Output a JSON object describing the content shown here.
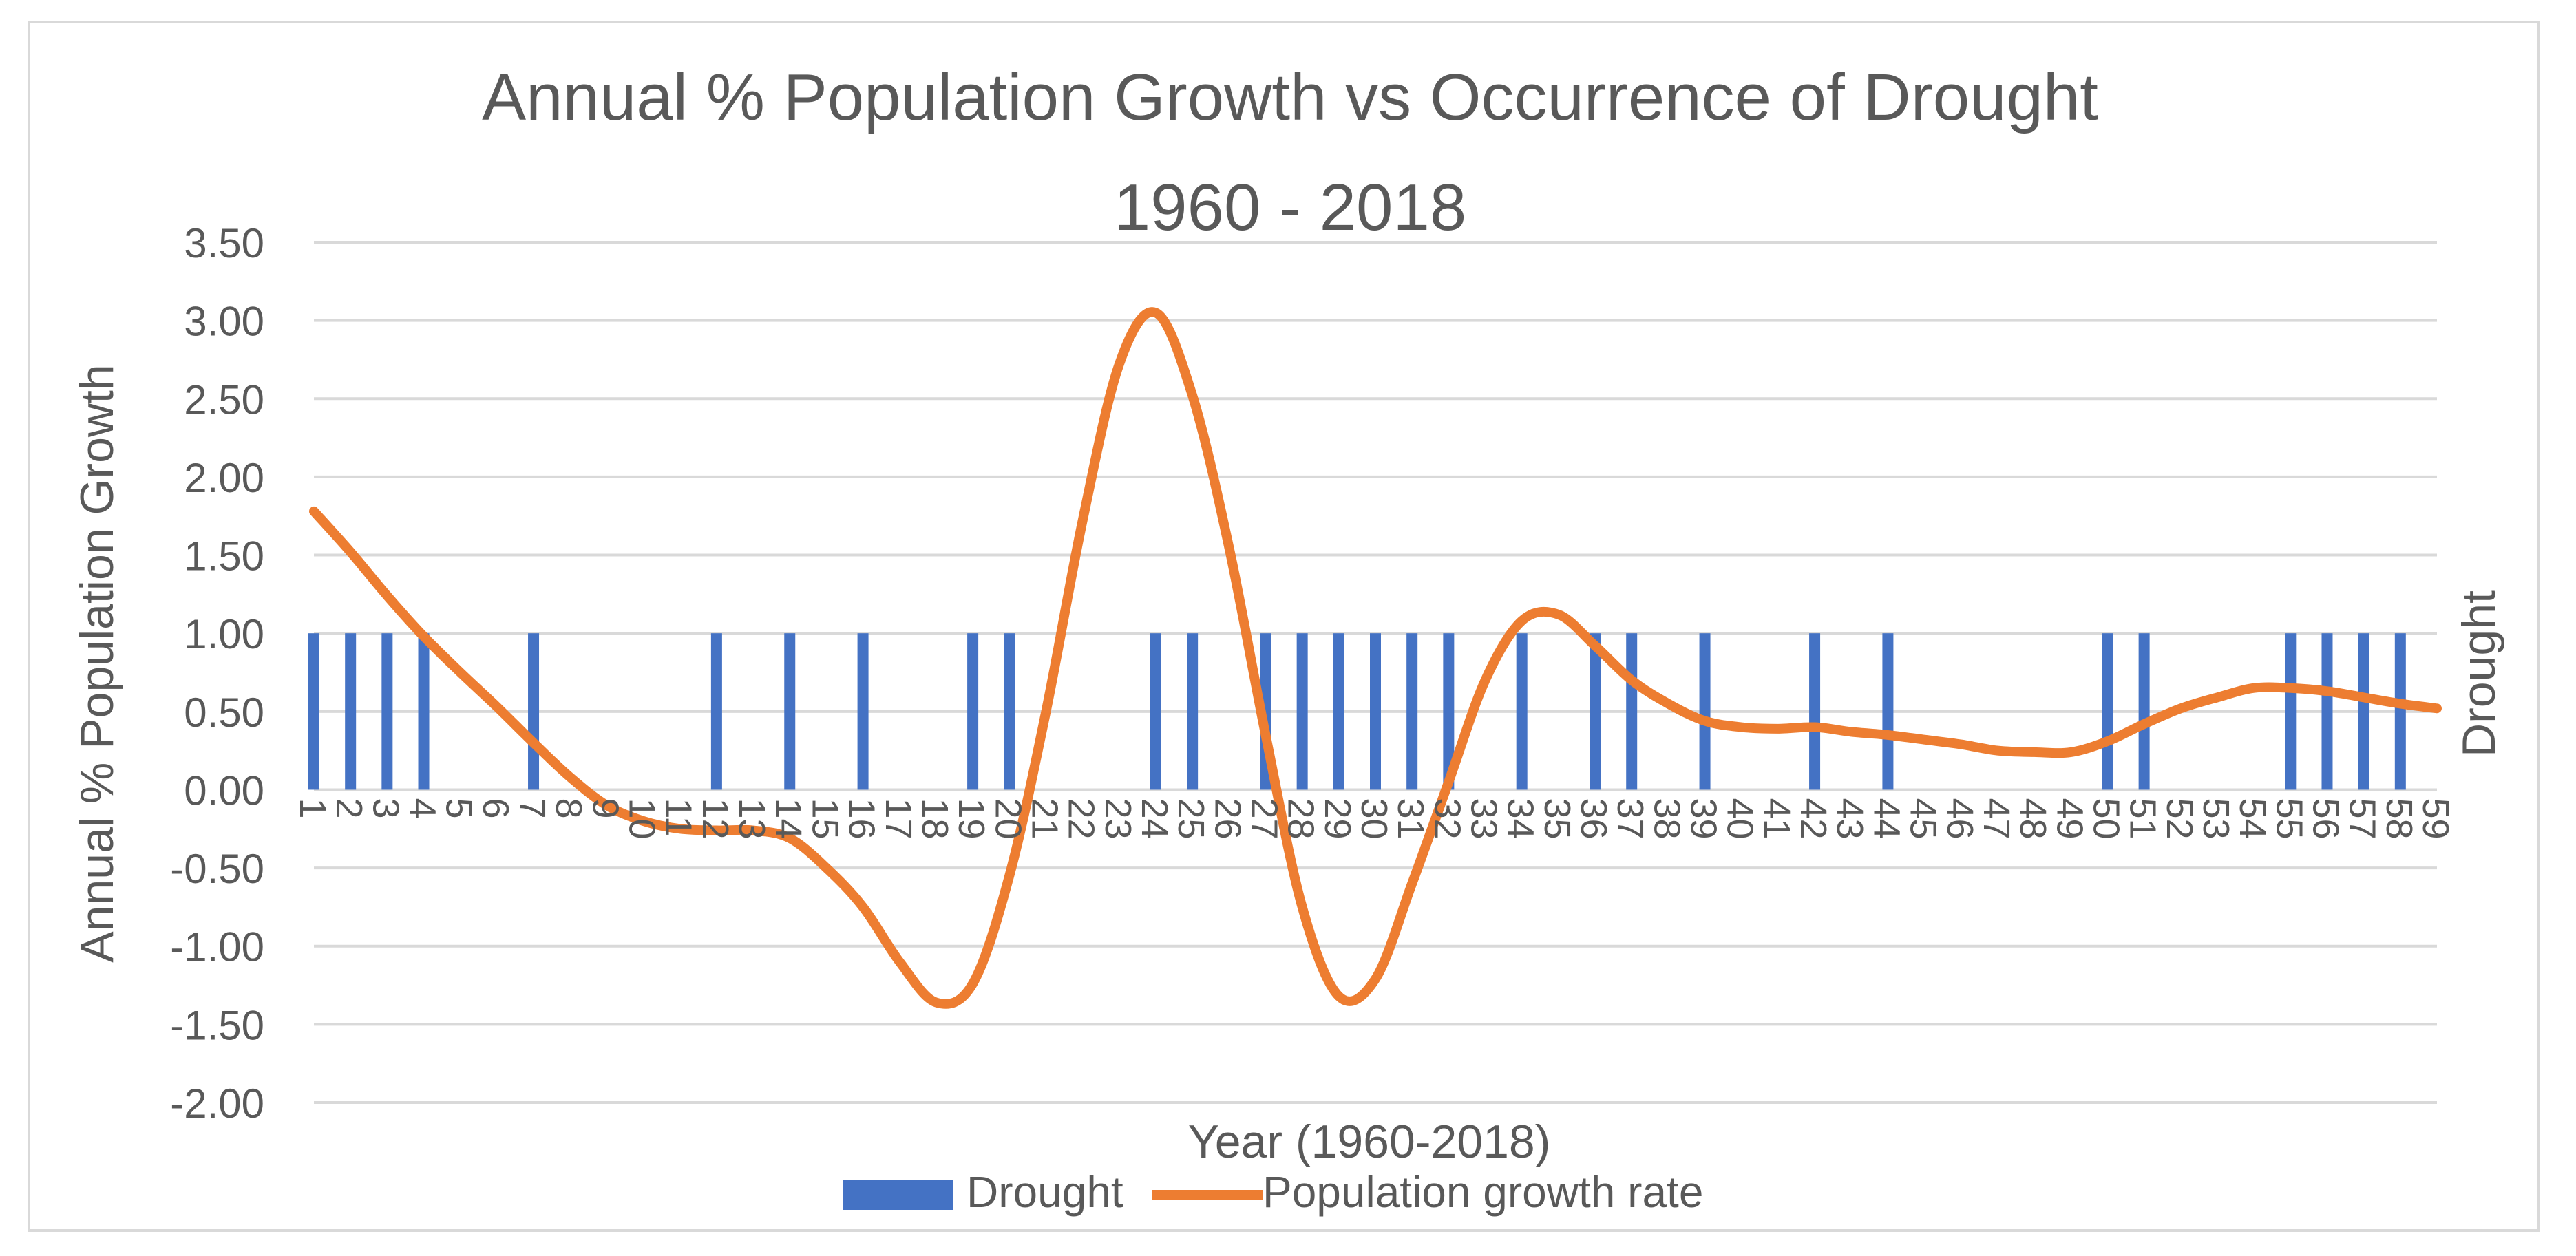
{
  "chart_data": {
    "type": "bar+line",
    "title_line1": "Annual % Population Growth vs Occurrence of Drought",
    "title_line2": "1960 - 2018",
    "xlabel": "Year (1960-2018)",
    "ylabel": "Annual % Population Growth",
    "y2label": "Drought",
    "ylim": [
      -2.0,
      3.5
    ],
    "yticks": [
      "3.50",
      "3.00",
      "2.50",
      "2.00",
      "1.50",
      "1.00",
      "0.50",
      "0.00",
      "-0.50",
      "-1.00",
      "-1.50",
      "-2.00"
    ],
    "grid": true,
    "legend_position": "bottom",
    "categories": [
      "1",
      "2",
      "3",
      "4",
      "5",
      "6",
      "7",
      "8",
      "9",
      "10",
      "11",
      "12",
      "13",
      "14",
      "15",
      "16",
      "17",
      "18",
      "19",
      "20",
      "21",
      "22",
      "23",
      "24",
      "25",
      "26",
      "27",
      "28",
      "29",
      "30",
      "31",
      "32",
      "33",
      "34",
      "35",
      "36",
      "37",
      "38",
      "39",
      "40",
      "41",
      "42",
      "43",
      "44",
      "45",
      "46",
      "47",
      "48",
      "49",
      "50",
      "51",
      "52",
      "53",
      "54",
      "55",
      "56",
      "57",
      "58",
      "59"
    ],
    "series": [
      {
        "name": "Drought",
        "kind": "bar",
        "color": "#4472c4",
        "values": [
          1,
          1,
          1,
          1,
          0,
          0,
          1,
          0,
          0,
          0,
          0,
          1,
          0,
          1,
          0,
          1,
          0,
          0,
          1,
          1,
          0,
          0,
          0,
          1,
          1,
          0,
          1,
          1,
          1,
          1,
          1,
          1,
          0,
          1,
          0,
          1,
          1,
          0,
          1,
          0,
          0,
          1,
          0,
          1,
          0,
          0,
          0,
          0,
          0,
          1,
          1,
          0,
          0,
          0,
          1,
          1,
          1,
          1,
          0
        ]
      },
      {
        "name": "Population growth rate",
        "kind": "line",
        "color": "#ed7d31",
        "values": [
          1.78,
          1.52,
          1.24,
          0.98,
          0.75,
          0.53,
          0.3,
          0.08,
          -0.1,
          -0.2,
          -0.25,
          -0.26,
          -0.26,
          -0.31,
          -0.5,
          -0.75,
          -1.1,
          -1.36,
          -1.24,
          -0.55,
          0.5,
          1.72,
          2.72,
          3.05,
          2.52,
          1.55,
          0.35,
          -0.75,
          -1.32,
          -1.21,
          -0.6,
          0.05,
          0.7,
          1.08,
          1.12,
          0.92,
          0.7,
          0.55,
          0.44,
          0.4,
          0.39,
          0.4,
          0.37,
          0.35,
          0.32,
          0.29,
          0.25,
          0.24,
          0.24,
          0.31,
          0.42,
          0.52,
          0.59,
          0.65,
          0.65,
          0.63,
          0.59,
          0.55,
          0.52
        ]
      }
    ]
  }
}
